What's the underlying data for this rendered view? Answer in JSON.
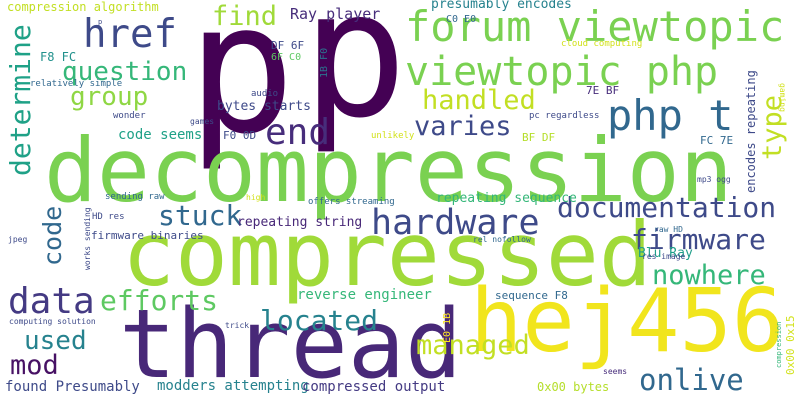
{
  "palette": {
    "purple": "#440154",
    "indigo": "#472d7b",
    "blue": "#3b528b",
    "slate": "#2c728e",
    "teal": "#21918c",
    "sea": "#28ae80",
    "green": "#5ec962",
    "lime": "#8fd744",
    "olive": "#addc30",
    "yellow": "#d8e219",
    "gold": "#fde725"
  },
  "words": [
    {
      "text": "p",
      "color": "#440154"
    },
    {
      "text": "p",
      "color": "#440154"
    },
    {
      "text": "decompression",
      "color": "#7ad151"
    },
    {
      "text": "compressed",
      "color": "#a0da39"
    },
    {
      "text": "thread",
      "color": "#482878"
    },
    {
      "text": "hej456",
      "color": "#f1e51d"
    },
    {
      "text": "forum viewtopic",
      "color": "#7ad151"
    },
    {
      "text": "viewtopic php",
      "color": "#7ad151"
    },
    {
      "text": "php t",
      "color": "#31688e"
    },
    {
      "text": "href",
      "color": "#3e4a89"
    },
    {
      "text": "hardware",
      "color": "#3e4a89"
    },
    {
      "text": "documentation",
      "color": "#3e4a89"
    },
    {
      "text": "firmware",
      "color": "#3e4a89"
    },
    {
      "text": "data",
      "color": "#443a83"
    },
    {
      "text": "end",
      "color": "#472d7b"
    },
    {
      "text": "question",
      "color": "#35b779"
    },
    {
      "text": "group",
      "color": "#8fd744"
    },
    {
      "text": "find",
      "color": "#a0da39"
    },
    {
      "text": "handled",
      "color": "#c2df23"
    },
    {
      "text": "varies",
      "color": "#3e4a89"
    },
    {
      "text": "stuck",
      "color": "#31688e"
    },
    {
      "text": "efforts",
      "color": "#5ec962"
    },
    {
      "text": "located",
      "color": "#26828e"
    },
    {
      "text": "managed",
      "color": "#c2df23"
    },
    {
      "text": "onlive",
      "color": "#31688e"
    },
    {
      "text": "nowhere",
      "color": "#35b779"
    },
    {
      "text": "used",
      "color": "#26828e"
    },
    {
      "text": "mod",
      "color": "#471164"
    },
    {
      "text": "determine",
      "color": "#1fa187"
    },
    {
      "text": "code",
      "color": "#31688e"
    },
    {
      "text": "type",
      "color": "#c2df23"
    },
    {
      "text": "Ray player",
      "color": "#472d7b"
    },
    {
      "text": "compression algorithm",
      "color": "#c2df23"
    },
    {
      "text": "presumably encodes",
      "color": "#26828e"
    },
    {
      "text": "code seems",
      "color": "#1fa187"
    },
    {
      "text": "bytes starts",
      "color": "#3e4a89"
    },
    {
      "text": "reverse engineer",
      "color": "#35b779"
    },
    {
      "text": "repeating string",
      "color": "#482878"
    },
    {
      "text": "repeating sequence",
      "color": "#35b779"
    },
    {
      "text": "firmware binaries",
      "color": "#3e4a89"
    },
    {
      "text": "modders attempting",
      "color": "#26828e"
    },
    {
      "text": "compressed output",
      "color": "#443a83"
    },
    {
      "text": "found Presumably",
      "color": "#3e4a89"
    },
    {
      "text": "Blu Ray",
      "color": "#1f9e89"
    },
    {
      "text": "sequence F8",
      "color": "#31688e"
    },
    {
      "text": "0x00 bytes",
      "color": "#b5de2b"
    },
    {
      "text": "encodes repeating",
      "color": "#3e4a89"
    },
    {
      "text": "F8 FC",
      "color": "#21918c"
    },
    {
      "text": "DF 6F",
      "color": "#3e4a89"
    },
    {
      "text": "6F C0",
      "color": "#5ec962"
    },
    {
      "text": "C0 E0",
      "color": "#31688e"
    },
    {
      "text": "1B F0",
      "color": "#2c728e"
    },
    {
      "text": "F0 0D",
      "color": "#3e4a89"
    },
    {
      "text": "7E BF",
      "color": "#472d7b"
    },
    {
      "text": "BF DF",
      "color": "#b5de2b"
    },
    {
      "text": "FC 7E",
      "color": "#31688e"
    },
    {
      "text": "E0 1B",
      "color": "#fde725"
    },
    {
      "text": "0x00 0x15",
      "color": "#d2e21b"
    },
    {
      "text": "cloud computing",
      "color": "#d2e21b"
    },
    {
      "text": "relatively simple",
      "color": "#31688e"
    },
    {
      "text": "audio",
      "color": "#3e4a89"
    },
    {
      "text": "wonder",
      "color": "#3e4a89"
    },
    {
      "text": "games",
      "color": "#3e4a89"
    },
    {
      "text": "pc regardless",
      "color": "#3e4a89"
    },
    {
      "text": "unlikely",
      "color": "#d2e21b"
    },
    {
      "text": "gaming",
      "color": "#d2e21b"
    },
    {
      "text": "sending raw",
      "color": "#31688e"
    },
    {
      "text": "works sending",
      "color": "#3e4a89"
    },
    {
      "text": "high",
      "color": "#d2e21b"
    },
    {
      "text": "offers streaming",
      "color": "#31688e"
    },
    {
      "text": "mp3 ogg",
      "color": "#3e4a89"
    },
    {
      "text": "HD res",
      "color": "#3e4a89"
    },
    {
      "text": "rel nofollow",
      "color": "#31688e"
    },
    {
      "text": "raw HD",
      "color": "#31688e"
    },
    {
      "text": "res image",
      "color": "#3e4a89"
    },
    {
      "text": "jpeg",
      "color": "#3e4a89"
    },
    {
      "text": "computing solution",
      "color": "#3e4a89"
    },
    {
      "text": "trick",
      "color": "#3e4a89"
    },
    {
      "text": "seems",
      "color": "#472d7b"
    },
    {
      "text": "compression",
      "color": "#35b779"
    },
    {
      "text": "p",
      "color": "#3e4a89"
    }
  ]
}
